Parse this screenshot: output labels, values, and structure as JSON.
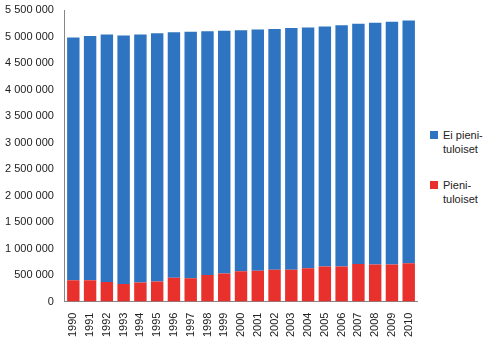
{
  "chart_data": {
    "type": "bar",
    "stacked": true,
    "grid": false,
    "legend": "right",
    "categories": [
      "1990",
      "1991",
      "1992",
      "1993",
      "1994",
      "1995",
      "1996",
      "1997",
      "1998",
      "1999",
      "2000",
      "2001",
      "2002",
      "2003",
      "2004",
      "2005",
      "2006",
      "2007",
      "2008",
      "2009",
      "2010"
    ],
    "series": [
      {
        "name": "Pieni-tuloiset",
        "color": "#e8302c",
        "values": [
          400000,
          400000,
          370000,
          330000,
          360000,
          380000,
          450000,
          440000,
          500000,
          530000,
          570000,
          580000,
          600000,
          600000,
          630000,
          660000,
          660000,
          710000,
          700000,
          700000,
          720000
        ]
      },
      {
        "name": "Ei pieni-tuloiset",
        "color": "#2f74c0",
        "values": [
          4580000,
          4610000,
          4670000,
          4690000,
          4680000,
          4680000,
          4630000,
          4650000,
          4600000,
          4580000,
          4550000,
          4550000,
          4540000,
          4560000,
          4540000,
          4530000,
          4550000,
          4530000,
          4560000,
          4580000,
          4580000
        ]
      }
    ],
    "ylim": [
      0,
      5500000
    ],
    "yticks": [
      0,
      {
        "value": 500000,
        "label": "500 000"
      },
      {
        "value": 1000000,
        "label": "1 000 000"
      },
      {
        "value": 1500000,
        "label": "1 500 000"
      },
      {
        "value": 2000000,
        "label": "2 000 000"
      },
      {
        "value": 2500000,
        "label": "2 500 000"
      },
      {
        "value": 3000000,
        "label": "3 000 000"
      },
      {
        "value": 3500000,
        "label": "3 500 000"
      },
      {
        "value": 4000000,
        "label": "4 000 000"
      },
      {
        "value": 4500000,
        "label": "4 500 000"
      },
      {
        "value": 5000000,
        "label": "5 000 000"
      },
      {
        "value": 5500000,
        "label": "5 500 000"
      }
    ]
  }
}
